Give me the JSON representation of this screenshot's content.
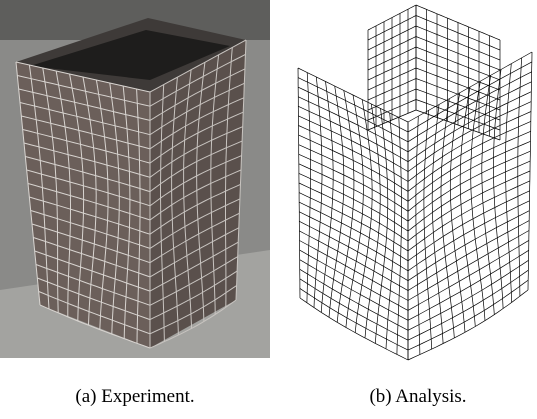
{
  "figure": {
    "captions": [
      "(a) Experiment.",
      "(b) Analysis."
    ]
  }
}
